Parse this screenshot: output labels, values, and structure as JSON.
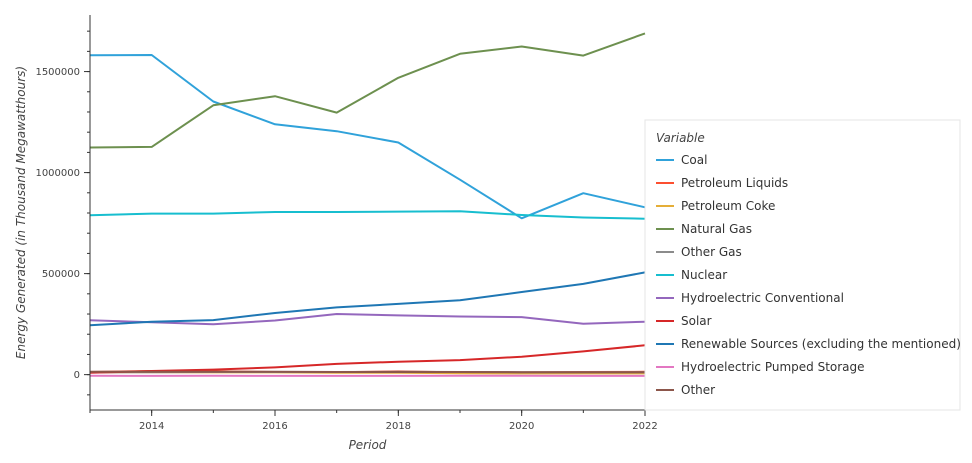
{
  "chart_data": {
    "type": "line",
    "xlabel": "Period",
    "ylabel": "Energy Generated (in Thousand Megawatthours)",
    "xlim": [
      2013,
      2022
    ],
    "ylim": [
      -175000,
      1780000
    ],
    "x": [
      2013,
      2014,
      2015,
      2016,
      2017,
      2018,
      2019,
      2020,
      2021,
      2022
    ],
    "x_ticks": [
      2014,
      2016,
      2018,
      2020,
      2022
    ],
    "y_ticks": [
      0,
      500000,
      1000000,
      1500000
    ],
    "x_tick_labels": [
      "2014",
      "2016",
      "2018",
      "2020",
      "2022"
    ],
    "y_tick_labels": [
      "0",
      "500000",
      "1000000",
      "1500000"
    ],
    "grid": false,
    "legend": {
      "title": "Variable",
      "position": "right"
    },
    "series": [
      {
        "name": "Coal",
        "color": "#30a2da",
        "values": [
          1581000,
          1582000,
          1352000,
          1239000,
          1205000,
          1149000,
          965000,
          774000,
          898000,
          828000
        ]
      },
      {
        "name": "Petroleum Liquids",
        "color": "#fc4f30",
        "values": [
          13000,
          18000,
          17000,
          13000,
          12000,
          16000,
          11000,
          11000,
          13000,
          14000
        ]
      },
      {
        "name": "Petroleum Coke",
        "color": "#e5ae38",
        "values": [
          11000,
          12000,
          11000,
          11000,
          9000,
          9000,
          7000,
          6000,
          6000,
          6000
        ]
      },
      {
        "name": "Natural Gas",
        "color": "#6d904f",
        "values": [
          1124000,
          1127000,
          1333000,
          1378000,
          1297000,
          1469000,
          1588000,
          1624000,
          1579000,
          1689000
        ]
      },
      {
        "name": "Other Gas",
        "color": "#8b8b8b",
        "values": [
          12000,
          12000,
          13000,
          13000,
          13000,
          14000,
          13000,
          12000,
          12000,
          12000
        ]
      },
      {
        "name": "Nuclear",
        "color": "#17becf",
        "values": [
          789000,
          797000,
          797000,
          805000,
          805000,
          807000,
          809000,
          790000,
          778000,
          772000
        ]
      },
      {
        "name": "Hydroelectric Conventional",
        "color": "#9467bd",
        "values": [
          269000,
          259000,
          249000,
          268000,
          300000,
          293000,
          288000,
          285000,
          252000,
          262000
        ]
      },
      {
        "name": "Solar",
        "color": "#d62728",
        "values": [
          9000,
          18000,
          25000,
          36000,
          53000,
          64000,
          72000,
          89000,
          115000,
          145000
        ]
      },
      {
        "name": "Renewable Sources (excluding the mentioned)",
        "color": "#1f77b4",
        "values": [
          244000,
          262000,
          270000,
          305000,
          333000,
          350000,
          368000,
          409000,
          449000,
          506000
        ]
      },
      {
        "name": "Hydroelectric Pumped Storage",
        "color": "#e377c2",
        "values": [
          -5000,
          -6000,
          -5000,
          -6000,
          -6000,
          -6000,
          -5000,
          -5000,
          -6000,
          -6000
        ]
      },
      {
        "name": "Other",
        "color": "#8c564b",
        "values": [
          14000,
          14000,
          14000,
          14000,
          13000,
          13000,
          13000,
          12000,
          12000,
          12000
        ]
      }
    ]
  }
}
